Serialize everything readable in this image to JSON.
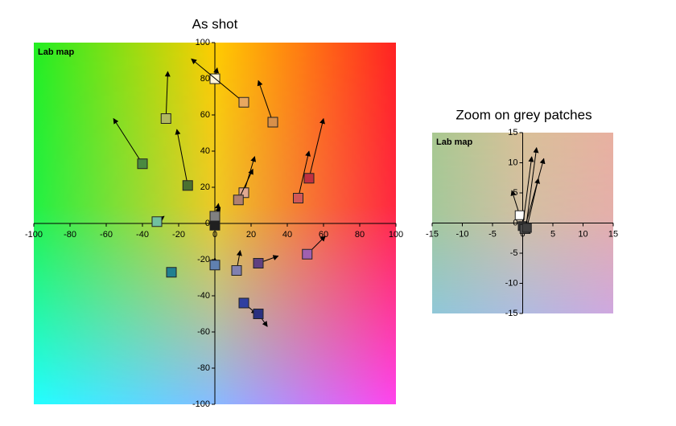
{
  "chart_data": [
    {
      "type": "vector",
      "title": "As shot",
      "annotation": "Lab map",
      "xlim": [
        -100,
        100
      ],
      "ylim": [
        -100,
        100
      ],
      "xticks": [
        -100,
        -80,
        -60,
        -40,
        -20,
        0,
        20,
        40,
        60,
        80,
        100
      ],
      "yticks": [
        -100,
        -80,
        -60,
        -40,
        -20,
        0,
        20,
        40,
        60,
        80,
        100
      ],
      "x": [
        0,
        16,
        32,
        -27,
        -40,
        -15,
        52,
        46,
        16,
        13,
        -32,
        0,
        0,
        51,
        24,
        12,
        0,
        -24,
        16,
        24
      ],
      "y": [
        80,
        67,
        56,
        58,
        33,
        21,
        25,
        14,
        17,
        13,
        1,
        -1,
        4,
        -17,
        -22,
        -26,
        -23,
        -27,
        -44,
        -50
      ],
      "x_end": [
        1.3,
        -13,
        24,
        -26,
        -56,
        -21,
        60,
        52,
        22,
        21,
        -28,
        2,
        3,
        61,
        35,
        14,
        0,
        -24,
        23,
        29
      ],
      "y_end": [
        86,
        91,
        79,
        84,
        58,
        52,
        58,
        40,
        37,
        30,
        4,
        11,
        9,
        -7,
        -18,
        -15,
        -19,
        -27,
        -50,
        -57
      ],
      "colors": [
        "#fff4d8",
        "#e8a860",
        "#d8904a",
        "#b0b860",
        "#4a8a40",
        "#4a7030",
        "#c03040",
        "#d05858",
        "#e0a890",
        "#b08070",
        "#70c0a0",
        "#202020",
        "#808080",
        "#a060b0",
        "#604080",
        "#8080b0",
        "#6080b0",
        "#208090",
        "#3040a0",
        "#2a3080"
      ]
    },
    {
      "type": "vector",
      "title": "Zoom on grey patches",
      "annotation": "Lab map",
      "xlim": [
        -15,
        15
      ],
      "ylim": [
        -15,
        15
      ],
      "xticks": [
        -15,
        -10,
        -5,
        0,
        5,
        10,
        15
      ],
      "yticks": [
        -15,
        -10,
        -5,
        0,
        5,
        10,
        15
      ],
      "x": [
        -0.5,
        0,
        0.5,
        0.3,
        0.7
      ],
      "y": [
        1.3,
        -0.5,
        -1,
        -1,
        -0.8
      ],
      "x_end": [
        -1.8,
        1.5,
        2.3,
        3.5,
        2.6
      ],
      "y_end": [
        5.4,
        11,
        12.5,
        10.7,
        7.4
      ],
      "colors": [
        "#ffffff",
        "#303030",
        "#202020",
        "#505050",
        "#404040"
      ]
    }
  ]
}
